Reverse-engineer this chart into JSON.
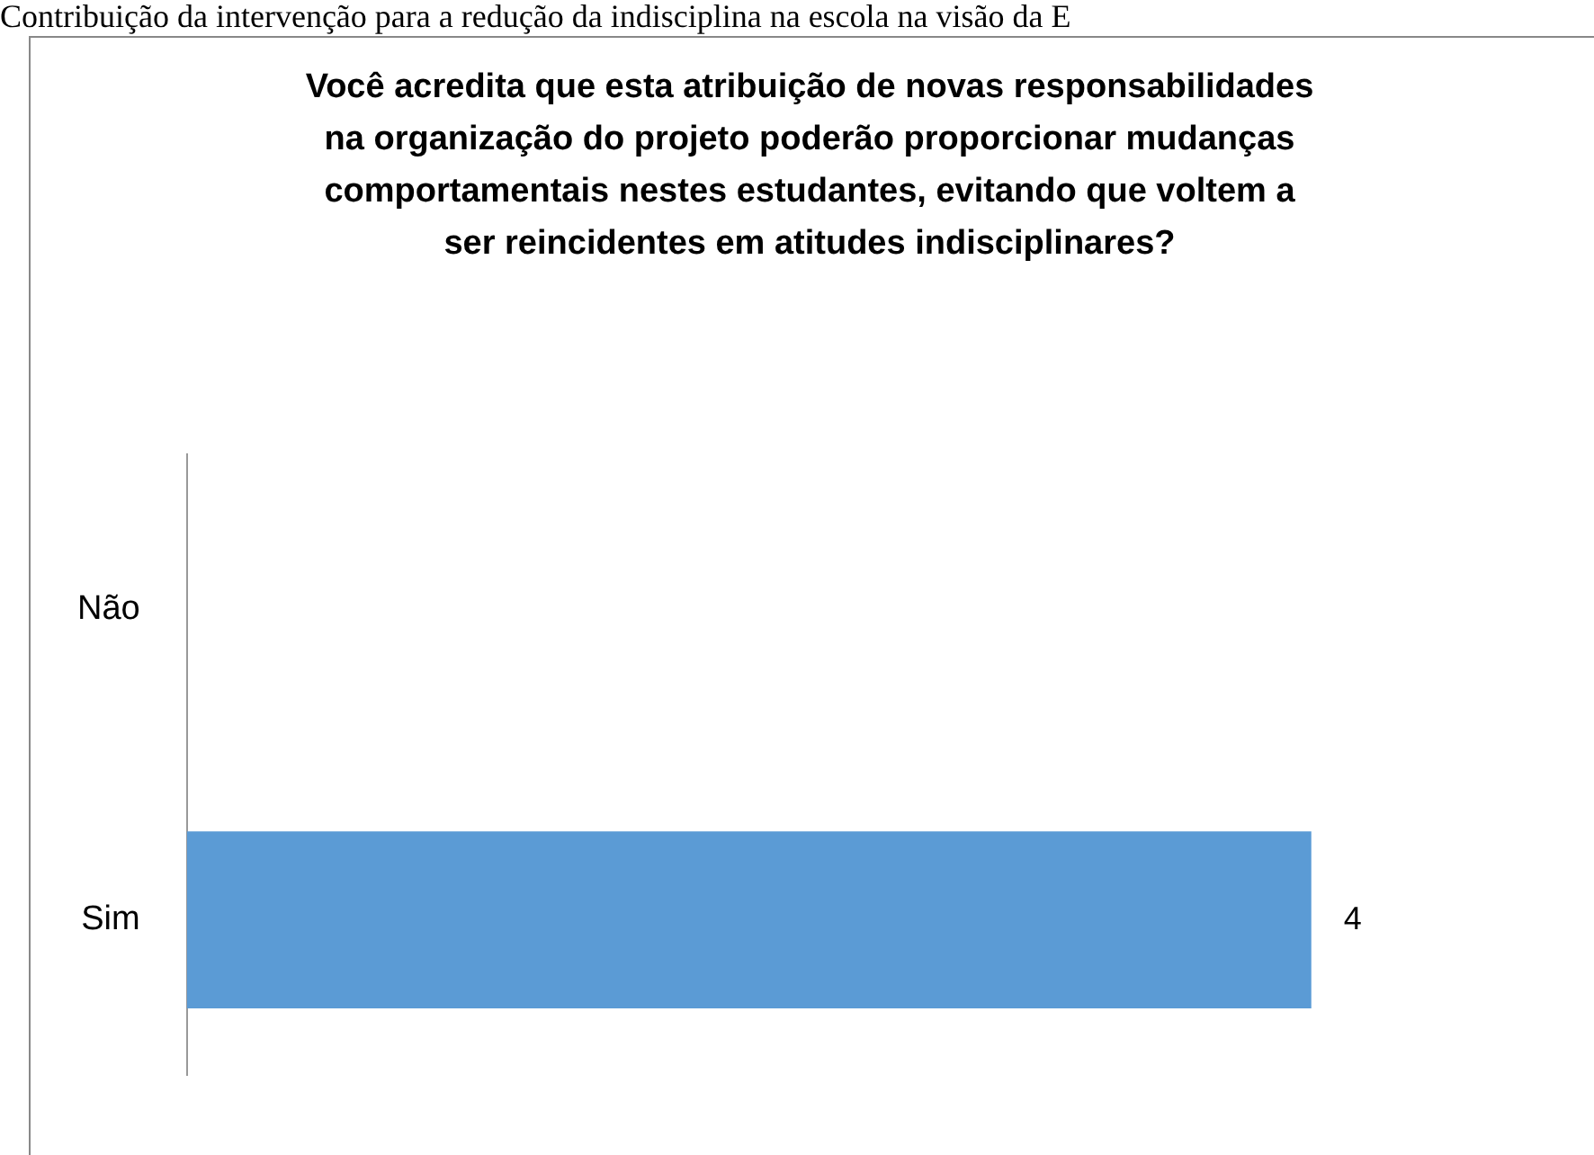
{
  "chart_data": {
    "type": "bar",
    "orientation": "horizontal",
    "title": "Você acredita que esta atribuição de novas responsabilidades na organização do projeto poderão proporcionar mudanças comportamentais nestes estudantes, evitando que voltem a ser reincidentes em atitudes indisciplinares?",
    "annotations": [
      "Contribuição da intervenção para a redução da indisciplina na escola na visão da E"
    ],
    "categories": [
      "Não",
      "Sim"
    ],
    "series": [
      {
        "color": "#5b9bd5",
        "values": [
          null,
          4
        ]
      }
    ],
    "data_labels": true,
    "legend": false
  }
}
